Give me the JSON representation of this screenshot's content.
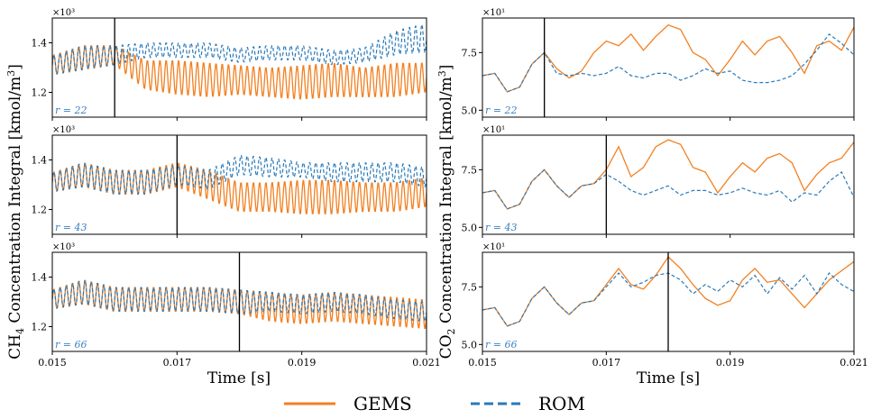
{
  "figure": {
    "left_ylabel": "CH",
    "left_ylabel_sub": "4",
    "left_ylabel_rest": " Concentration Integral [kmol/m",
    "left_ylabel_sup": "3",
    "left_ylabel_end": "]",
    "right_ylabel": "CO",
    "right_ylabel_sub": "2",
    "right_ylabel_rest": " Concentration Integral [kmol/m",
    "right_ylabel_sup": "3",
    "right_ylabel_end": "]",
    "xlabel": "Time [s]",
    "colors": {
      "gems": "#f28021",
      "rom": "#2a7ab8",
      "r_label": "#3b82c4"
    }
  },
  "legend": {
    "placement": "bottom-center",
    "entries": [
      {
        "name": "GEMS",
        "style": "solid",
        "color": "#f28021"
      },
      {
        "name": "ROM",
        "style": "dashed",
        "color": "#2a7ab8"
      }
    ]
  },
  "chart_data": [
    {
      "type": "line",
      "species": "CH4",
      "r_label": "r = 22",
      "xlim": [
        0.015,
        0.021
      ],
      "ylim": [
        1.1,
        1.5
      ],
      "y_multiplier": "×10³",
      "yticks": [
        "1.2",
        "1.4"
      ],
      "yticks_values": [
        1.2,
        1.4
      ],
      "xticks": [
        "0.015",
        "0.017",
        "0.019",
        "0.021"
      ],
      "xticks_values": [
        0.015,
        0.017,
        0.019,
        0.021
      ],
      "training_end": 0.016,
      "show_xtick_labels": false,
      "gems": [
        [
          0.015,
          1.31
        ],
        [
          0.0155,
          1.34
        ],
        [
          0.016,
          1.35
        ],
        [
          0.0165,
          1.27
        ],
        [
          0.017,
          1.26
        ],
        [
          0.0175,
          1.25
        ],
        [
          0.018,
          1.25
        ],
        [
          0.0185,
          1.24
        ],
        [
          0.019,
          1.24
        ],
        [
          0.0195,
          1.25
        ],
        [
          0.02,
          1.24
        ],
        [
          0.0205,
          1.25
        ],
        [
          0.021,
          1.26
        ]
      ],
      "gems_amp": [
        0.04,
        0.05,
        0.04,
        0.06,
        0.07,
        0.07,
        0.06,
        0.06,
        0.07,
        0.07,
        0.06,
        0.07,
        0.06
      ],
      "rom": [
        [
          0.015,
          1.31
        ],
        [
          0.0155,
          1.34
        ],
        [
          0.016,
          1.35
        ],
        [
          0.0165,
          1.37
        ],
        [
          0.017,
          1.37
        ],
        [
          0.0175,
          1.37
        ],
        [
          0.018,
          1.35
        ],
        [
          0.0185,
          1.36
        ],
        [
          0.019,
          1.36
        ],
        [
          0.0195,
          1.34
        ],
        [
          0.02,
          1.35
        ],
        [
          0.0205,
          1.4
        ],
        [
          0.021,
          1.42
        ]
      ],
      "rom_amp": [
        0.04,
        0.05,
        0.04,
        0.03,
        0.03,
        0.03,
        0.03,
        0.03,
        0.03,
        0.03,
        0.03,
        0.05,
        0.06
      ],
      "period": 0.0001
    },
    {
      "type": "line",
      "species": "CH4",
      "r_label": "r = 43",
      "xlim": [
        0.015,
        0.021
      ],
      "ylim": [
        1.1,
        1.5
      ],
      "y_multiplier": "×10³",
      "yticks": [
        "1.2",
        "1.4"
      ],
      "yticks_values": [
        1.2,
        1.4
      ],
      "xticks": [
        "0.015",
        "0.017",
        "0.019",
        "0.021"
      ],
      "xticks_values": [
        0.015,
        0.017,
        0.019,
        0.021
      ],
      "training_end": 0.017,
      "show_xtick_labels": false,
      "gems": [
        [
          0.015,
          1.31
        ],
        [
          0.0155,
          1.34
        ],
        [
          0.016,
          1.31
        ],
        [
          0.0165,
          1.31
        ],
        [
          0.017,
          1.34
        ],
        [
          0.0175,
          1.3
        ],
        [
          0.018,
          1.25
        ],
        [
          0.0185,
          1.25
        ],
        [
          0.019,
          1.25
        ],
        [
          0.0195,
          1.25
        ],
        [
          0.02,
          1.25
        ],
        [
          0.0205,
          1.25
        ],
        [
          0.021,
          1.27
        ]
      ],
      "gems_amp": [
        0.04,
        0.05,
        0.05,
        0.05,
        0.05,
        0.06,
        0.06,
        0.06,
        0.07,
        0.07,
        0.06,
        0.06,
        0.06
      ],
      "rom": [
        [
          0.015,
          1.31
        ],
        [
          0.0155,
          1.34
        ],
        [
          0.016,
          1.31
        ],
        [
          0.0165,
          1.31
        ],
        [
          0.017,
          1.34
        ],
        [
          0.0175,
          1.32
        ],
        [
          0.018,
          1.38
        ],
        [
          0.0185,
          1.37
        ],
        [
          0.019,
          1.36
        ],
        [
          0.0195,
          1.35
        ],
        [
          0.02,
          1.35
        ],
        [
          0.0205,
          1.35
        ],
        [
          0.021,
          1.33
        ]
      ],
      "rom_amp": [
        0.04,
        0.05,
        0.05,
        0.05,
        0.04,
        0.04,
        0.04,
        0.04,
        0.03,
        0.04,
        0.04,
        0.04,
        0.04
      ],
      "period": 0.0001
    },
    {
      "type": "line",
      "species": "CH4",
      "r_label": "r = 66",
      "xlim": [
        0.015,
        0.021
      ],
      "ylim": [
        1.1,
        1.5
      ],
      "y_multiplier": "×10³",
      "yticks": [
        "1.2",
        "1.4"
      ],
      "yticks_values": [
        1.2,
        1.4
      ],
      "xticks": [
        "0.015",
        "0.017",
        "0.019",
        "0.021"
      ],
      "xticks_values": [
        0.015,
        0.017,
        0.019,
        0.021
      ],
      "training_end": 0.018,
      "show_xtick_labels": true,
      "gems": [
        [
          0.015,
          1.31
        ],
        [
          0.0155,
          1.34
        ],
        [
          0.016,
          1.31
        ],
        [
          0.0165,
          1.31
        ],
        [
          0.017,
          1.31
        ],
        [
          0.0175,
          1.31
        ],
        [
          0.018,
          1.3
        ],
        [
          0.0185,
          1.28
        ],
        [
          0.019,
          1.27
        ],
        [
          0.0195,
          1.28
        ],
        [
          0.02,
          1.27
        ],
        [
          0.0205,
          1.26
        ],
        [
          0.021,
          1.25
        ]
      ],
      "gems_amp": [
        0.04,
        0.05,
        0.05,
        0.05,
        0.05,
        0.05,
        0.05,
        0.06,
        0.06,
        0.06,
        0.06,
        0.06,
        0.06
      ],
      "rom": [
        [
          0.015,
          1.31
        ],
        [
          0.0155,
          1.34
        ],
        [
          0.016,
          1.31
        ],
        [
          0.0165,
          1.31
        ],
        [
          0.017,
          1.31
        ],
        [
          0.0175,
          1.31
        ],
        [
          0.018,
          1.3
        ],
        [
          0.0185,
          1.3
        ],
        [
          0.019,
          1.29
        ],
        [
          0.0195,
          1.3
        ],
        [
          0.02,
          1.29
        ],
        [
          0.0205,
          1.27
        ],
        [
          0.021,
          1.26
        ]
      ],
      "rom_amp": [
        0.04,
        0.05,
        0.05,
        0.05,
        0.05,
        0.05,
        0.05,
        0.04,
        0.04,
        0.04,
        0.04,
        0.04,
        0.04
      ],
      "period": 0.0001
    },
    {
      "type": "line",
      "species": "CO2",
      "r_label": "r = 22",
      "xlim": [
        0.015,
        0.021
      ],
      "ylim": [
        4.7,
        9.0
      ],
      "y_multiplier": "×10¹",
      "yticks": [
        "5.0",
        "7.5"
      ],
      "yticks_values": [
        5.0,
        7.5
      ],
      "xticks": [
        "0.015",
        "0.017",
        "0.019",
        "0.021"
      ],
      "xticks_values": [
        0.015,
        0.017,
        0.019,
        0.021
      ],
      "training_end": 0.016,
      "show_xtick_labels": false,
      "gems": [
        [
          0.015,
          6.5
        ],
        [
          0.0152,
          6.6
        ],
        [
          0.0154,
          5.8
        ],
        [
          0.0156,
          6.0
        ],
        [
          0.0158,
          7.0
        ],
        [
          0.016,
          7.5
        ],
        [
          0.0162,
          6.8
        ],
        [
          0.0164,
          6.4
        ],
        [
          0.0166,
          6.7
        ],
        [
          0.0168,
          7.5
        ],
        [
          0.017,
          8.0
        ],
        [
          0.0172,
          7.8
        ],
        [
          0.0174,
          8.3
        ],
        [
          0.0176,
          7.6
        ],
        [
          0.0178,
          8.2
        ],
        [
          0.018,
          8.7
        ],
        [
          0.0182,
          8.5
        ],
        [
          0.0184,
          7.5
        ],
        [
          0.0186,
          7.2
        ],
        [
          0.0188,
          6.5
        ],
        [
          0.019,
          7.2
        ],
        [
          0.0192,
          8.0
        ],
        [
          0.0194,
          7.4
        ],
        [
          0.0196,
          8.0
        ],
        [
          0.0198,
          8.2
        ],
        [
          0.02,
          7.5
        ],
        [
          0.0202,
          6.6
        ],
        [
          0.0204,
          7.8
        ],
        [
          0.0206,
          8.0
        ],
        [
          0.0208,
          7.6
        ],
        [
          0.021,
          8.6
        ]
      ],
      "rom": [
        [
          0.015,
          6.5
        ],
        [
          0.0152,
          6.6
        ],
        [
          0.0154,
          5.8
        ],
        [
          0.0156,
          6.0
        ],
        [
          0.0158,
          7.0
        ],
        [
          0.016,
          7.5
        ],
        [
          0.0162,
          6.6
        ],
        [
          0.0164,
          6.5
        ],
        [
          0.0166,
          6.6
        ],
        [
          0.0168,
          6.5
        ],
        [
          0.017,
          6.6
        ],
        [
          0.0172,
          6.9
        ],
        [
          0.0174,
          6.5
        ],
        [
          0.0176,
          6.4
        ],
        [
          0.0178,
          6.6
        ],
        [
          0.018,
          6.6
        ],
        [
          0.0182,
          6.3
        ],
        [
          0.0184,
          6.5
        ],
        [
          0.0186,
          6.8
        ],
        [
          0.0188,
          6.6
        ],
        [
          0.019,
          6.7
        ],
        [
          0.0192,
          6.3
        ],
        [
          0.0194,
          6.2
        ],
        [
          0.0196,
          6.2
        ],
        [
          0.0198,
          6.3
        ],
        [
          0.02,
          6.5
        ],
        [
          0.0202,
          7.0
        ],
        [
          0.0204,
          7.6
        ],
        [
          0.0206,
          8.3
        ],
        [
          0.0208,
          7.9
        ],
        [
          0.021,
          7.4
        ]
      ]
    },
    {
      "type": "line",
      "species": "CO2",
      "r_label": "r = 43",
      "xlim": [
        0.015,
        0.021
      ],
      "ylim": [
        4.7,
        9.0
      ],
      "y_multiplier": "×10¹",
      "yticks": [
        "5.0",
        "7.5"
      ],
      "yticks_values": [
        5.0,
        7.5
      ],
      "xticks": [
        "0.015",
        "0.017",
        "0.019",
        "0.021"
      ],
      "xticks_values": [
        0.015,
        0.017,
        0.019,
        0.021
      ],
      "training_end": 0.017,
      "show_xtick_labels": false,
      "gems": [
        [
          0.015,
          6.5
        ],
        [
          0.0152,
          6.6
        ],
        [
          0.0154,
          5.8
        ],
        [
          0.0156,
          6.0
        ],
        [
          0.0158,
          7.0
        ],
        [
          0.016,
          7.5
        ],
        [
          0.0162,
          6.8
        ],
        [
          0.0164,
          6.3
        ],
        [
          0.0166,
          6.8
        ],
        [
          0.0168,
          6.9
        ],
        [
          0.017,
          7.5
        ],
        [
          0.0172,
          8.5
        ],
        [
          0.0174,
          7.2
        ],
        [
          0.0176,
          7.6
        ],
        [
          0.0178,
          8.5
        ],
        [
          0.018,
          8.8
        ],
        [
          0.0182,
          8.6
        ],
        [
          0.0184,
          7.6
        ],
        [
          0.0186,
          7.4
        ],
        [
          0.0188,
          6.5
        ],
        [
          0.019,
          7.2
        ],
        [
          0.0192,
          7.8
        ],
        [
          0.0194,
          7.4
        ],
        [
          0.0196,
          8.0
        ],
        [
          0.0198,
          8.2
        ],
        [
          0.02,
          7.8
        ],
        [
          0.0202,
          6.6
        ],
        [
          0.0204,
          7.3
        ],
        [
          0.0206,
          7.8
        ],
        [
          0.0208,
          8.0
        ],
        [
          0.021,
          8.7
        ]
      ],
      "rom": [
        [
          0.015,
          6.5
        ],
        [
          0.0152,
          6.6
        ],
        [
          0.0154,
          5.8
        ],
        [
          0.0156,
          6.0
        ],
        [
          0.0158,
          7.0
        ],
        [
          0.016,
          7.5
        ],
        [
          0.0162,
          6.8
        ],
        [
          0.0164,
          6.3
        ],
        [
          0.0166,
          6.8
        ],
        [
          0.0168,
          6.9
        ],
        [
          0.017,
          7.3
        ],
        [
          0.0172,
          7.0
        ],
        [
          0.0174,
          6.6
        ],
        [
          0.0176,
          6.4
        ],
        [
          0.0178,
          6.6
        ],
        [
          0.018,
          6.8
        ],
        [
          0.0182,
          6.4
        ],
        [
          0.0184,
          6.6
        ],
        [
          0.0186,
          6.6
        ],
        [
          0.0188,
          6.4
        ],
        [
          0.019,
          6.5
        ],
        [
          0.0192,
          6.7
        ],
        [
          0.0194,
          6.5
        ],
        [
          0.0196,
          6.4
        ],
        [
          0.0198,
          6.6
        ],
        [
          0.02,
          6.1
        ],
        [
          0.0202,
          6.5
        ],
        [
          0.0204,
          6.4
        ],
        [
          0.0206,
          7.0
        ],
        [
          0.0208,
          7.4
        ],
        [
          0.021,
          6.3
        ]
      ]
    },
    {
      "type": "line",
      "species": "CO2",
      "r_label": "r = 66",
      "xlim": [
        0.015,
        0.021
      ],
      "ylim": [
        4.7,
        9.0
      ],
      "y_multiplier": "×10¹",
      "yticks": [
        "5.0",
        "7.5"
      ],
      "yticks_values": [
        5.0,
        7.5
      ],
      "xticks": [
        "0.015",
        "0.017",
        "0.019",
        "0.021"
      ],
      "xticks_values": [
        0.015,
        0.017,
        0.019,
        0.021
      ],
      "training_end": 0.018,
      "show_xtick_labels": true,
      "gems": [
        [
          0.015,
          6.5
        ],
        [
          0.0152,
          6.6
        ],
        [
          0.0154,
          5.8
        ],
        [
          0.0156,
          6.0
        ],
        [
          0.0158,
          7.0
        ],
        [
          0.016,
          7.5
        ],
        [
          0.0162,
          6.8
        ],
        [
          0.0164,
          6.3
        ],
        [
          0.0166,
          6.8
        ],
        [
          0.0168,
          6.9
        ],
        [
          0.017,
          7.6
        ],
        [
          0.0172,
          8.3
        ],
        [
          0.0174,
          7.6
        ],
        [
          0.0176,
          7.4
        ],
        [
          0.0178,
          8.0
        ],
        [
          0.018,
          8.8
        ],
        [
          0.0182,
          8.3
        ],
        [
          0.0184,
          7.6
        ],
        [
          0.0186,
          7.0
        ],
        [
          0.0188,
          6.7
        ],
        [
          0.019,
          6.9
        ],
        [
          0.0192,
          7.8
        ],
        [
          0.0194,
          8.3
        ],
        [
          0.0196,
          7.7
        ],
        [
          0.0198,
          7.8
        ],
        [
          0.02,
          7.2
        ],
        [
          0.0202,
          6.6
        ],
        [
          0.0204,
          7.2
        ],
        [
          0.0206,
          7.8
        ],
        [
          0.0208,
          8.2
        ],
        [
          0.021,
          8.6
        ]
      ],
      "rom": [
        [
          0.015,
          6.5
        ],
        [
          0.0152,
          6.6
        ],
        [
          0.0154,
          5.8
        ],
        [
          0.0156,
          6.0
        ],
        [
          0.0158,
          7.0
        ],
        [
          0.016,
          7.5
        ],
        [
          0.0162,
          6.8
        ],
        [
          0.0164,
          6.3
        ],
        [
          0.0166,
          6.8
        ],
        [
          0.0168,
          6.9
        ],
        [
          0.017,
          7.5
        ],
        [
          0.0172,
          8.1
        ],
        [
          0.0174,
          7.5
        ],
        [
          0.0176,
          7.7
        ],
        [
          0.0178,
          8.0
        ],
        [
          0.018,
          8.1
        ],
        [
          0.0182,
          7.8
        ],
        [
          0.0184,
          7.2
        ],
        [
          0.0186,
          7.6
        ],
        [
          0.0188,
          7.3
        ],
        [
          0.019,
          7.8
        ],
        [
          0.0192,
          7.5
        ],
        [
          0.0194,
          8.0
        ],
        [
          0.0196,
          7.2
        ],
        [
          0.0198,
          7.9
        ],
        [
          0.02,
          7.4
        ],
        [
          0.0202,
          8.0
        ],
        [
          0.0204,
          7.2
        ],
        [
          0.0206,
          8.1
        ],
        [
          0.0208,
          7.6
        ],
        [
          0.021,
          7.3
        ]
      ]
    }
  ]
}
